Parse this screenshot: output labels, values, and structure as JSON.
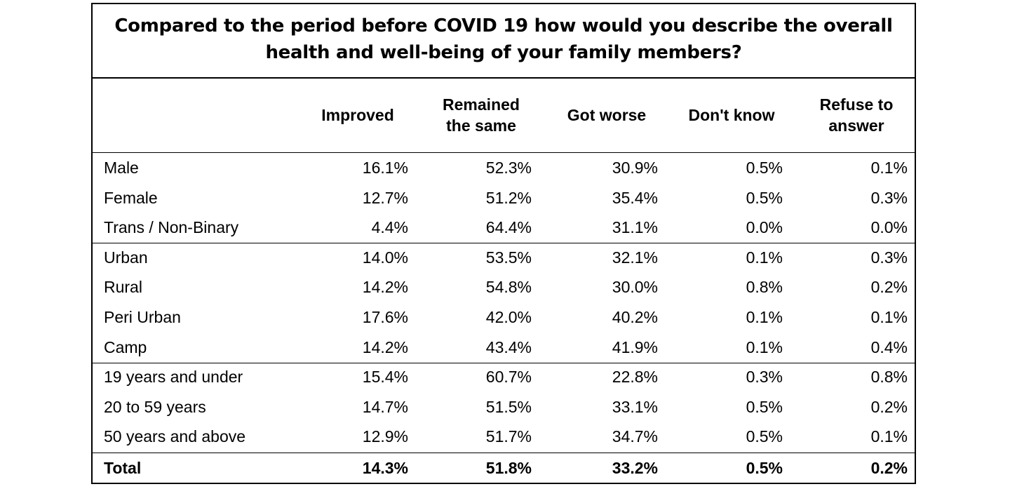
{
  "title": "Compared to the period before COVID 19 how would you describe the overall health and well-being of your family members?",
  "columns": [
    "Improved",
    "Remained the same",
    "Got worse",
    "Don't know",
    "Refuse to answer"
  ],
  "groups": [
    {
      "rows": [
        {
          "label": "Male",
          "values": [
            "16.1%",
            "52.3%",
            "30.9%",
            "0.5%",
            "0.1%"
          ]
        },
        {
          "label": "Female",
          "values": [
            "12.7%",
            "51.2%",
            "35.4%",
            "0.5%",
            "0.3%"
          ]
        },
        {
          "label": "Trans / Non-Binary",
          "values": [
            "4.4%",
            "64.4%",
            "31.1%",
            "0.0%",
            "0.0%"
          ]
        }
      ]
    },
    {
      "rows": [
        {
          "label": "Urban",
          "values": [
            "14.0%",
            "53.5%",
            "32.1%",
            "0.1%",
            "0.3%"
          ]
        },
        {
          "label": "Rural",
          "values": [
            "14.2%",
            "54.8%",
            "30.0%",
            "0.8%",
            "0.2%"
          ]
        },
        {
          "label": "Peri Urban",
          "values": [
            "17.6%",
            "42.0%",
            "40.2%",
            "0.1%",
            "0.1%"
          ]
        },
        {
          "label": "Camp",
          "values": [
            "14.2%",
            "43.4%",
            "41.9%",
            "0.1%",
            "0.4%"
          ]
        }
      ]
    },
    {
      "rows": [
        {
          "label": "19 years and under",
          "values": [
            "15.4%",
            "60.7%",
            "22.8%",
            "0.3%",
            "0.8%"
          ]
        },
        {
          "label": "20 to 59 years",
          "values": [
            "14.7%",
            "51.5%",
            "33.1%",
            "0.5%",
            "0.2%"
          ]
        },
        {
          "label": "50 years and above",
          "values": [
            "12.9%",
            "51.7%",
            "34.7%",
            "0.5%",
            "0.1%"
          ]
        }
      ]
    }
  ],
  "total": {
    "label": "Total",
    "values": [
      "14.3%",
      "51.8%",
      "33.2%",
      "0.5%",
      "0.2%"
    ]
  }
}
